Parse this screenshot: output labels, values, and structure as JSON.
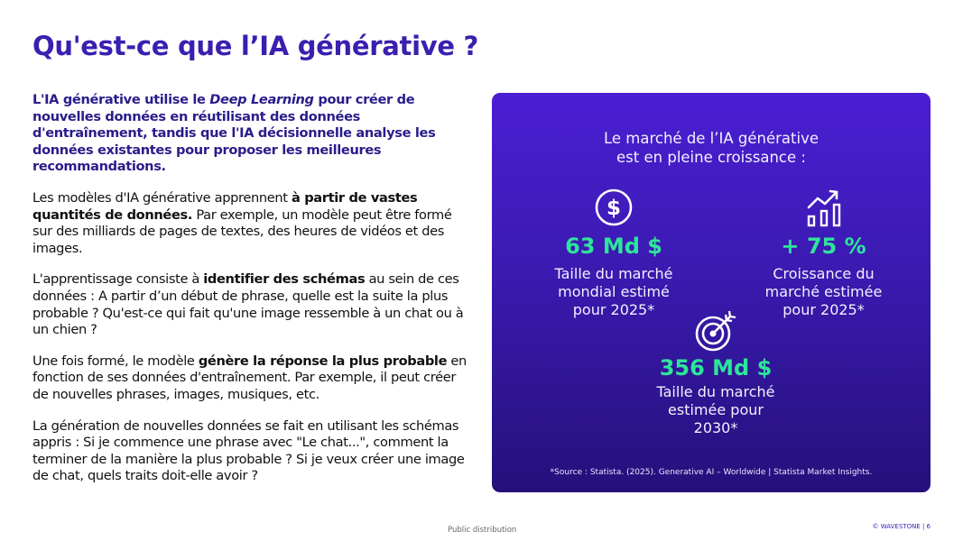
{
  "title": "Qu'est-ce que l’IA générative ?",
  "left": {
    "p1": {
      "a": "L'IA générative utilise le ",
      "b": "Deep Learning",
      "c": " pour créer de nouvelles données en réutilisant des données d'entraînement, tandis que l'IA décisionnelle analyse les données existantes pour proposer les meilleures recommandations."
    },
    "p2": {
      "a": "Les modèles d'IA générative apprennent ",
      "b": "à partir de vastes quantités de données.",
      "c": " Par exemple, un modèle peut être formé sur des milliards de pages de textes, des heures de vidéos et des images."
    },
    "p3": {
      "a": "L'apprentissage consiste à ",
      "b": "identifier des schémas",
      "c": " au sein de ces données : A partir d’un début de phrase, quelle est la suite la plus probable ? Qu'est-ce qui fait qu'une image ressemble à un chat ou à un chien ?"
    },
    "p4": {
      "a": "Une fois formé, le modèle ",
      "b": "génère la réponse la plus probable",
      "c": " en fonction de ses données d'entraînement. Par exemple, il peut créer de nouvelles phrases, images, musiques, etc."
    },
    "p5": "La génération de nouvelles données se fait en utilisant les schémas appris : Si je commence une phrase avec \"Le chat...\", comment la terminer de la manière la plus probable ? Si je veux créer une image de chat, quels traits doit-elle avoir ?"
  },
  "panel": {
    "heading_line1": "Le marché de l’IA générative",
    "heading_line2": "est en pleine croissance :",
    "stats": [
      {
        "icon": "dollar-icon",
        "value": "63 Md $",
        "desc": [
          "Taille du marché",
          "mondial estimé",
          "pour 2025*"
        ]
      },
      {
        "icon": "growth-chart-icon",
        "value": "+ 75 %",
        "desc": [
          "Croissance du",
          "marché estimée",
          "pour 2025*"
        ]
      },
      {
        "icon": "target-icon",
        "value": "356 Md $",
        "desc": [
          "Taille du marché",
          "estimée pour",
          "2030*"
        ]
      }
    ],
    "source": "*Source : Statista. (2025). Generative AI – Worldwide | Statista Market Insights."
  },
  "footer": "Public distribution",
  "brand": "© WAVESTONE | 6",
  "colors": {
    "title": "#3a1fb0",
    "intro": "#2a1c8a",
    "accent_green": "#2ee59a",
    "panel_top": "#4b1fd3",
    "panel_bottom": "#25107a"
  }
}
